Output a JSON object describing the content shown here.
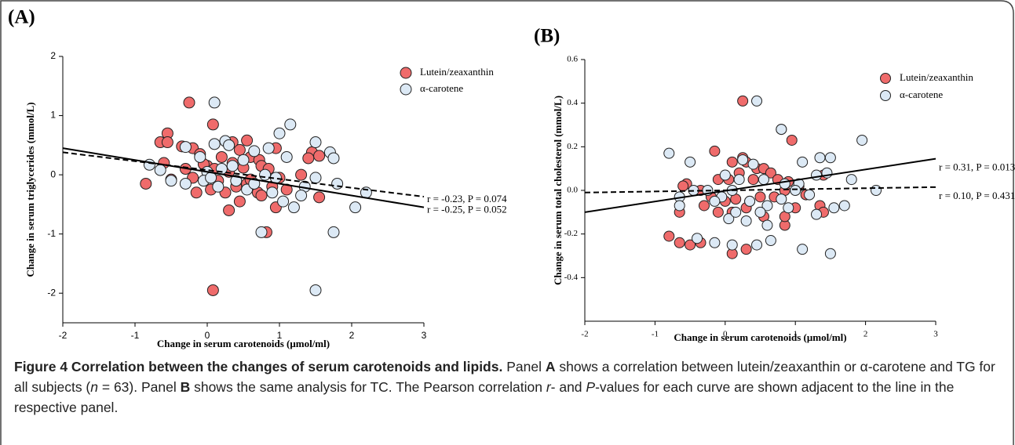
{
  "chart_data": [
    {
      "type": "scatter",
      "panel_label": "(A)",
      "x_label": "Change in serum carotenoids (μmol/ml)",
      "y_label": "Change in serum triglycerides (mmol/L)",
      "xlim": [
        -2,
        3
      ],
      "xticks": [
        -2,
        -1,
        0,
        1,
        2,
        3
      ],
      "ylim": [
        -2.5,
        2
      ],
      "yticks": [
        -2,
        -1,
        0,
        1,
        2
      ],
      "legend": "upper right",
      "series": [
        {
          "name": "Lutein/zeaxanthin",
          "color": "#ef6b6b",
          "x": [
            -0.25,
            0.08,
            -0.55,
            -0.65,
            -0.55,
            -0.35,
            -0.2,
            0.35,
            0.55,
            0.45,
            -0.1,
            0.2,
            0.6,
            0.72,
            0.95,
            1.45,
            1.55,
            1.4,
            -0.6,
            -0.3,
            0,
            0.1,
            -0.05,
            0.3,
            0.5,
            0.75,
            0.85,
            -0.85,
            -0.5,
            -0.2,
            -0.15,
            0.05,
            0.15,
            0.25,
            0.3,
            0.4,
            0.45,
            0.55,
            0.7,
            0.75,
            0.82,
            0.9,
            0.95,
            1.1,
            1.3,
            1.55,
            1.0,
            0.08,
            0.35,
            0.6
          ],
          "values": [
            1.22,
            0.85,
            0.7,
            0.55,
            0.55,
            0.48,
            0.45,
            0.55,
            0.58,
            0.42,
            0.35,
            0.3,
            0.3,
            0.25,
            0.45,
            0.38,
            0.32,
            0.28,
            0.2,
            0.1,
            0.15,
            0.1,
            0.18,
            0.05,
            0.12,
            0.15,
            0.1,
            -0.15,
            -0.08,
            -0.05,
            -0.3,
            -0.25,
            -0.1,
            -0.3,
            -0.6,
            -0.2,
            -0.45,
            -0.15,
            -0.3,
            -0.35,
            -0.97,
            -0.2,
            -0.55,
            -0.25,
            0,
            -0.38,
            -0.05,
            -1.95,
            0.2,
            -0.08
          ]
        },
        {
          "name": "α-carotene",
          "color": "#dce9f5",
          "x": [
            0.1,
            1.15,
            0.25,
            0.3,
            0.1,
            1.0,
            -0.3,
            1.5,
            1.7,
            1.75,
            0.65,
            0.85,
            0.5,
            0.35,
            0.2,
            -0.1,
            0,
            -0.8,
            -0.65,
            -0.5,
            -0.3,
            -0.05,
            0.05,
            0.15,
            0.4,
            0.55,
            0.65,
            0.8,
            0.9,
            1.05,
            1.2,
            1.35,
            1.5,
            1.3,
            1.8,
            2.2,
            2.05,
            0.75,
            1.75,
            1.5,
            1.1,
            0.95
          ],
          "values": [
            1.22,
            0.85,
            0.57,
            0.5,
            0.52,
            0.7,
            0.47,
            0.55,
            0.38,
            0.28,
            0.4,
            0.45,
            0.25,
            0.15,
            0.1,
            0.3,
            0.05,
            0.17,
            0.08,
            -0.1,
            -0.15,
            -0.1,
            -0.05,
            -0.2,
            -0.1,
            -0.25,
            -0.15,
            0,
            -0.3,
            -0.45,
            -0.55,
            -0.2,
            -0.05,
            -0.35,
            -0.15,
            -0.3,
            -0.55,
            -0.97,
            -0.97,
            -1.95,
            0.3,
            -0.05
          ]
        }
      ],
      "fit_lines": [
        {
          "dash": true,
          "x": [
            -2,
            3
          ],
          "y": [
            0.38,
            -0.37
          ],
          "label": "r = -0.23, P = 0.074"
        },
        {
          "dash": false,
          "x": [
            -2,
            3
          ],
          "y": [
            0.45,
            -0.55
          ],
          "label": "r = -0.25, P = 0.052"
        }
      ]
    },
    {
      "type": "scatter",
      "panel_label": "(B)",
      "x_label": "Change in serum carotenoids (μmol/ml)",
      "y_label": "Change in serum total cholesterol (mmol/L)",
      "xlim": [
        -2,
        3
      ],
      "xticks": [
        -2,
        -1,
        0,
        1,
        2,
        3
      ],
      "ylim": [
        -0.6,
        0.6
      ],
      "yticks": [
        -0.4,
        -0.2,
        {
          "value": 0,
          "label": "0.0"
        },
        0.2,
        0.4,
        0.6
      ],
      "legend": "upper right",
      "series": [
        {
          "name": "Lutein/zeaxanthin",
          "color": "#ef6b6b",
          "x": [
            0.25,
            0.8,
            0.95,
            -0.15,
            0.25,
            0.3,
            0.1,
            0.45,
            0.55,
            0.65,
            0.2,
            -0.1,
            0.05,
            0.4,
            0.75,
            0.9,
            1.05,
            1.4,
            -0.55,
            -0.6,
            -0.35,
            -0.2,
            0,
            0.15,
            0.35,
            0.5,
            0.7,
            0.85,
            1.15,
            -0.65,
            -0.3,
            -0.1,
            0.1,
            0.3,
            0.55,
            0.85,
            1.0,
            1.35,
            -0.8,
            -0.65,
            -0.5,
            -0.35,
            0.1,
            0.3,
            0.85,
            1.4
          ],
          "values": [
            0.41,
            0.28,
            0.23,
            0.18,
            0.15,
            0.13,
            0.13,
            0.1,
            0.1,
            0.08,
            0.08,
            0.05,
            0.05,
            0.05,
            0.05,
            0.04,
            0.02,
            0.07,
            0.03,
            0.02,
            0,
            -0.03,
            -0.05,
            -0.04,
            -0.05,
            -0.03,
            -0.03,
            0,
            -0.02,
            -0.1,
            -0.07,
            -0.1,
            -0.1,
            -0.08,
            -0.12,
            -0.16,
            -0.08,
            -0.07,
            -0.21,
            -0.24,
            -0.25,
            -0.24,
            -0.29,
            -0.27,
            -0.12,
            -0.1
          ]
        },
        {
          "name": "α-carotene",
          "color": "#dce9f5",
          "x": [
            0.45,
            0.8,
            1.95,
            -0.8,
            -0.5,
            0.25,
            0.4,
            1.1,
            1.35,
            1.5,
            1.8,
            2.15,
            1.3,
            1.45,
            0,
            0.2,
            0.55,
            0.85,
            1.05,
            -0.65,
            -0.45,
            -0.25,
            -0.05,
            0.1,
            0.35,
            0.6,
            1.0,
            1.2,
            1.7,
            -0.65,
            -0.15,
            0.05,
            0.15,
            0.3,
            0.5,
            0.6,
            0.9,
            1.3,
            1.55,
            -0.4,
            -0.15,
            0.1,
            0.45,
            0.65,
            1.1,
            1.5,
            0.8
          ],
          "values": [
            0.41,
            0.28,
            0.23,
            0.17,
            0.13,
            0.14,
            0.12,
            0.13,
            0.15,
            0.15,
            0.05,
            0,
            0.07,
            0.08,
            0.07,
            0.05,
            0.05,
            0.03,
            0.03,
            -0.03,
            0,
            0,
            -0.03,
            0,
            -0.05,
            -0.07,
            0,
            -0.02,
            -0.07,
            -0.07,
            -0.05,
            -0.13,
            -0.1,
            -0.14,
            -0.1,
            -0.16,
            -0.08,
            -0.11,
            -0.08,
            -0.22,
            -0.24,
            -0.25,
            -0.25,
            -0.23,
            -0.27,
            -0.29,
            -0.04
          ]
        }
      ],
      "fit_lines": [
        {
          "dash": false,
          "x": [
            -2,
            3
          ],
          "y": [
            -0.1,
            0.145
          ],
          "label": "r = 0.31, P = 0.013"
        },
        {
          "dash": true,
          "x": [
            -2,
            3
          ],
          "y": [
            -0.01,
            0.015
          ],
          "label": "r = 0.10, P = 0.431"
        }
      ]
    }
  ],
  "caption": {
    "parts": [
      "Figure 4 Correlation between the changes of serum carotenoids and lipids.",
      " Panel ",
      "A",
      " shows a correlation between lutein/zeaxanthin or α-carotene and TG for all subjects (",
      "n",
      " = 63). Panel ",
      "B",
      " shows the same analysis for TC. The Pearson correlation ",
      "r",
      "- and ",
      "P",
      "-values for each curve are shown adjacent to the line in the respective panel."
    ]
  }
}
